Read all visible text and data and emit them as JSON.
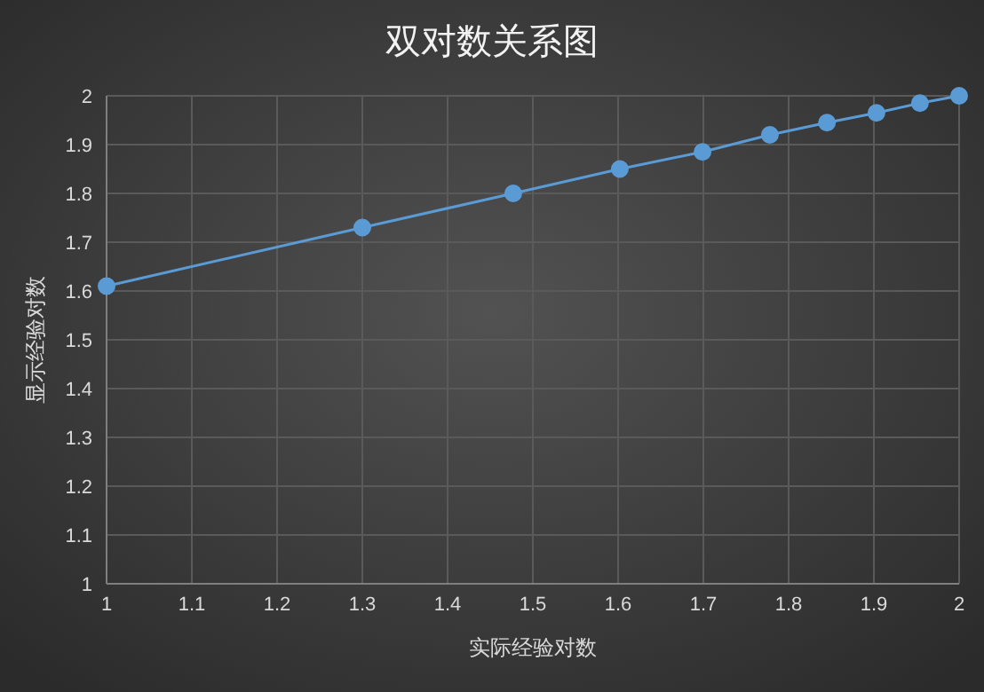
{
  "chart_data": {
    "type": "line",
    "title": "双对数关系图",
    "xlabel": "实际经验对数",
    "ylabel": "显示经验对数",
    "x": [
      1,
      1.3,
      1.477,
      1.602,
      1.699,
      1.778,
      1.845,
      1.903,
      1.954,
      2
    ],
    "series": [
      {
        "color": "#5b9bd5",
        "values": [
          1.61,
          1.73,
          1.8,
          1.85,
          1.885,
          1.92,
          1.945,
          1.965,
          1.985,
          2
        ]
      }
    ],
    "xlim": [
      1,
      2
    ],
    "ylim": [
      1,
      2
    ],
    "xticks": [
      1,
      1.1,
      1.2,
      1.3,
      1.4,
      1.5,
      1.6,
      1.7,
      1.8,
      1.9,
      2
    ],
    "yticks": [
      1,
      1.1,
      1.2,
      1.3,
      1.4,
      1.5,
      1.6,
      1.7,
      1.8,
      1.9,
      2
    ],
    "grid": true,
    "marker": "circle",
    "line_style": "solid"
  }
}
